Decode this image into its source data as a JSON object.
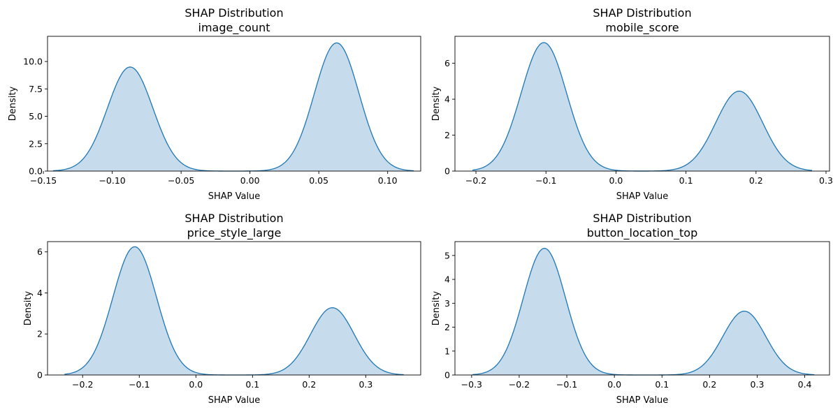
{
  "chart_data": [
    {
      "type": "area",
      "title": "SHAP Distribution",
      "subtitle": "image_count",
      "xlabel": "SHAP Value",
      "ylabel": "Density",
      "xlim": [
        -0.147,
        0.124
      ],
      "ylim": [
        0,
        12.3
      ],
      "xticks": [
        -0.15,
        -0.1,
        -0.05,
        0.0,
        0.05,
        0.1
      ],
      "xtick_labels": [
        "−0.15",
        "−0.10",
        "−0.05",
        "0.00",
        "0.05",
        "0.10"
      ],
      "yticks": [
        0.0,
        2.5,
        5.0,
        7.5,
        10.0
      ],
      "ytick_labels": [
        "0.0",
        "2.5",
        "5.0",
        "7.5",
        "10.0"
      ],
      "x_range": [
        -0.143,
        0.119
      ],
      "peaks": [
        {
          "center": -0.087,
          "height": 9.5,
          "sigma": 0.0165
        },
        {
          "center": 0.063,
          "height": 11.7,
          "sigma": 0.0162
        }
      ]
    },
    {
      "type": "area",
      "title": "SHAP Distribution",
      "subtitle": "mobile_score",
      "xlabel": "SHAP Value",
      "ylabel": "Density",
      "xlim": [
        -0.23,
        0.305
      ],
      "ylim": [
        0,
        7.5
      ],
      "xticks": [
        -0.2,
        -0.1,
        0.0,
        0.1,
        0.2,
        0.3
      ],
      "xtick_labels": [
        "−0.2",
        "−0.1",
        "0.0",
        "0.1",
        "0.2",
        "0.3"
      ],
      "yticks": [
        0,
        2,
        4,
        6
      ],
      "ytick_labels": [
        "0",
        "2",
        "4",
        "6"
      ],
      "x_range": [
        -0.205,
        0.28
      ],
      "peaks": [
        {
          "center": -0.103,
          "height": 7.15,
          "sigma": 0.0325
        },
        {
          "center": 0.176,
          "height": 4.45,
          "sigma": 0.0335
        }
      ]
    },
    {
      "type": "area",
      "title": "SHAP Distribution",
      "subtitle": "price_style_large",
      "xlabel": "SHAP Value",
      "ylabel": "Density",
      "xlim": [
        -0.262,
        0.397
      ],
      "ylim": [
        0,
        6.5
      ],
      "xticks": [
        -0.2,
        -0.1,
        0.0,
        0.1,
        0.2,
        0.3
      ],
      "xtick_labels": [
        "−0.2",
        "−0.1",
        "0.0",
        "0.1",
        "0.2",
        "0.3"
      ],
      "yticks": [
        0,
        2,
        4,
        6
      ],
      "ytick_labels": [
        "0",
        "2",
        "4",
        "6"
      ],
      "x_range": [
        -0.232,
        0.367
      ],
      "peaks": [
        {
          "center": -0.108,
          "height": 6.25,
          "sigma": 0.0385
        },
        {
          "center": 0.241,
          "height": 3.28,
          "sigma": 0.0385
        }
      ]
    },
    {
      "type": "area",
      "title": "SHAP Distribution",
      "subtitle": "button_location_top",
      "xlabel": "SHAP Value",
      "ylabel": "Density",
      "xlim": [
        -0.335,
        0.452
      ],
      "ylim": [
        0,
        5.58
      ],
      "xticks": [
        -0.3,
        -0.2,
        -0.1,
        0.0,
        0.1,
        0.2,
        0.3,
        0.4
      ],
      "xtick_labels": [
        "−0.3",
        "−0.2",
        "−0.1",
        "0.0",
        "0.1",
        "0.2",
        "0.3",
        "0.4"
      ],
      "yticks": [
        0,
        1,
        2,
        3,
        4,
        5
      ],
      "ytick_labels": [
        "0",
        "1",
        "2",
        "3",
        "4",
        "5"
      ],
      "x_range": [
        -0.298,
        0.42
      ],
      "peaks": [
        {
          "center": -0.147,
          "height": 5.3,
          "sigma": 0.0445
        },
        {
          "center": 0.273,
          "height": 2.67,
          "sigma": 0.045
        }
      ]
    }
  ],
  "colors": {
    "line": "#1f77b4",
    "fill": "#c6dbec",
    "axis": "#000000"
  }
}
